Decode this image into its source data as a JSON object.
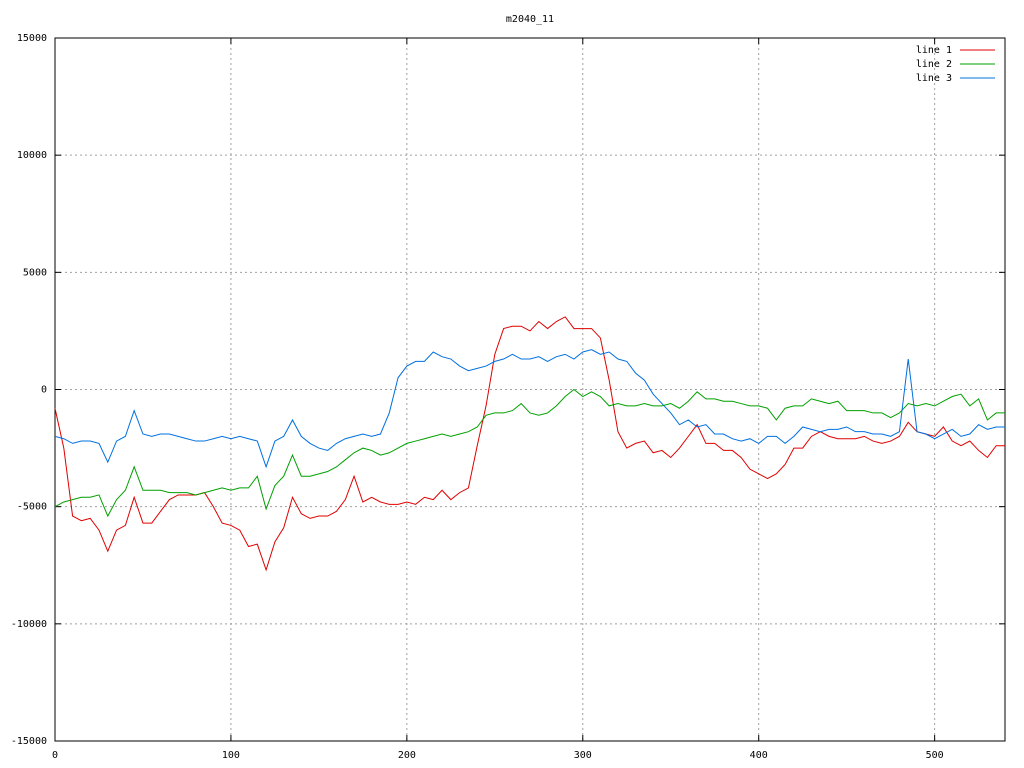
{
  "chart_data": {
    "type": "line",
    "title": "m2040_11",
    "x": [
      0,
      5,
      10,
      15,
      20,
      25,
      30,
      35,
      40,
      45,
      50,
      55,
      60,
      65,
      70,
      75,
      80,
      85,
      90,
      95,
      100,
      105,
      110,
      115,
      120,
      125,
      130,
      135,
      140,
      145,
      150,
      155,
      160,
      165,
      170,
      175,
      180,
      185,
      190,
      195,
      200,
      205,
      210,
      215,
      220,
      225,
      230,
      235,
      240,
      245,
      250,
      255,
      260,
      265,
      270,
      275,
      280,
      285,
      290,
      295,
      300,
      305,
      310,
      315,
      320,
      325,
      330,
      335,
      340,
      345,
      350,
      355,
      360,
      365,
      370,
      375,
      380,
      385,
      390,
      395,
      400,
      405,
      410,
      415,
      420,
      425,
      430,
      435,
      440,
      445,
      450,
      455,
      460,
      465,
      470,
      475,
      480,
      485,
      490,
      495,
      500,
      505,
      510,
      515,
      520,
      525,
      530,
      535,
      540
    ],
    "series": [
      {
        "name": "line 1",
        "color": "#e00000",
        "values": [
          -800,
          -2500,
          -5400,
          -5600,
          -5500,
          -6000,
          -6900,
          -6000,
          -5800,
          -4600,
          -5700,
          -5700,
          -5200,
          -4700,
          -4500,
          -4500,
          -4500,
          -4400,
          -5000,
          -5700,
          -5800,
          -6000,
          -6700,
          -6600,
          -7700,
          -6500,
          -5900,
          -4600,
          -5300,
          -5500,
          -5400,
          -5400,
          -5200,
          -4700,
          -3700,
          -4800,
          -4600,
          -4800,
          -4900,
          -4900,
          -4800,
          -4900,
          -4600,
          -4700,
          -4300,
          -4700,
          -4400,
          -4200,
          -2400,
          -700,
          1500,
          2600,
          2700,
          2700,
          2500,
          2900,
          2600,
          2900,
          3100,
          2600,
          2600,
          2600,
          2200,
          400,
          -1800,
          -2500,
          -2300,
          -2200,
          -2700,
          -2600,
          -2900,
          -2500,
          -2000,
          -1500,
          -2300,
          -2300,
          -2600,
          -2600,
          -2900,
          -3400,
          -3600,
          -3800,
          -3600,
          -3200,
          -2500,
          -2500,
          -2000,
          -1800,
          -2000,
          -2100,
          -2100,
          -2100,
          -2000,
          -2200,
          -2300,
          -2200,
          -2000,
          -1400,
          -1800,
          -1900,
          -2000,
          -1600,
          -2200,
          -2400,
          -2200,
          -2600,
          -2900,
          -2400,
          -2400
        ]
      },
      {
        "name": "line 2",
        "color": "#00a000",
        "values": [
          -5000,
          -4800,
          -4700,
          -4600,
          -4600,
          -4500,
          -5400,
          -4700,
          -4300,
          -3300,
          -4300,
          -4300,
          -4300,
          -4400,
          -4400,
          -4400,
          -4500,
          -4400,
          -4300,
          -4200,
          -4300,
          -4200,
          -4200,
          -3700,
          -5100,
          -4100,
          -3700,
          -2800,
          -3700,
          -3700,
          -3600,
          -3500,
          -3300,
          -3000,
          -2700,
          -2500,
          -2600,
          -2800,
          -2700,
          -2500,
          -2300,
          -2200,
          -2100,
          -2000,
          -1900,
          -2000,
          -1900,
          -1800,
          -1600,
          -1100,
          -1000,
          -1000,
          -900,
          -600,
          -1000,
          -1100,
          -1000,
          -700,
          -300,
          0,
          -300,
          -100,
          -300,
          -700,
          -600,
          -700,
          -700,
          -600,
          -700,
          -700,
          -600,
          -800,
          -500,
          -100,
          -400,
          -400,
          -500,
          -500,
          -600,
          -700,
          -700,
          -800,
          -1300,
          -800,
          -700,
          -700,
          -400,
          -500,
          -600,
          -500,
          -900,
          -900,
          -900,
          -1000,
          -1000,
          -1200,
          -1000,
          -600,
          -700,
          -600,
          -700,
          -500,
          -300,
          -200,
          -700,
          -400,
          -1300,
          -1000,
          -1000
        ]
      },
      {
        "name": "line 3",
        "color": "#0070e0",
        "values": [
          -2000,
          -2100,
          -2300,
          -2200,
          -2200,
          -2300,
          -3100,
          -2200,
          -2000,
          -900,
          -1900,
          -2000,
          -1900,
          -1900,
          -2000,
          -2100,
          -2200,
          -2200,
          -2100,
          -2000,
          -2100,
          -2000,
          -2100,
          -2200,
          -3300,
          -2200,
          -2000,
          -1300,
          -2000,
          -2300,
          -2500,
          -2600,
          -2300,
          -2100,
          -2000,
          -1900,
          -2000,
          -1900,
          -1000,
          500,
          1000,
          1200,
          1200,
          1600,
          1400,
          1300,
          1000,
          800,
          900,
          1000,
          1200,
          1300,
          1500,
          1300,
          1300,
          1400,
          1200,
          1400,
          1500,
          1300,
          1600,
          1700,
          1500,
          1600,
          1300,
          1200,
          700,
          400,
          -200,
          -600,
          -1000,
          -1500,
          -1300,
          -1600,
          -1500,
          -1900,
          -1900,
          -2100,
          -2200,
          -2100,
          -2300,
          -2000,
          -2000,
          -2300,
          -2000,
          -1600,
          -1700,
          -1800,
          -1700,
          -1700,
          -1600,
          -1800,
          -1800,
          -1900,
          -1900,
          -2000,
          -1800,
          1300,
          -1800,
          -1900,
          -2100,
          -1900,
          -1700,
          -2000,
          -1900,
          -1500,
          -1700,
          -1600,
          -1600
        ]
      }
    ],
    "xlim": [
      0,
      540
    ],
    "xticks": [
      0,
      100,
      200,
      300,
      400,
      500
    ],
    "ylim": [
      -15000,
      15000
    ],
    "yticks": [
      -15000,
      -10000,
      -5000,
      0,
      5000,
      10000,
      15000
    ],
    "grid": true,
    "legend": "top-right"
  }
}
